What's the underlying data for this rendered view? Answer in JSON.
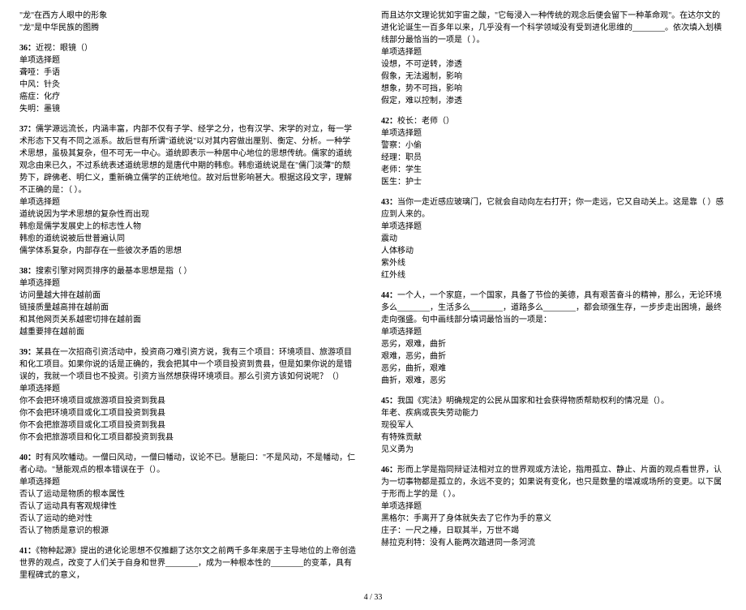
{
  "left": {
    "pre": [
      "\"龙\"在西方人眼中的形象",
      "\"龙\"是中华民族的图腾"
    ],
    "q36": {
      "num": "36：",
      "title": "近视：眼镜（）",
      "type": "单项选择题",
      "opts": [
        "聋哑：手语",
        "中风：针灸",
        "癌症：化疗",
        "失明：墨镜"
      ]
    },
    "q37": {
      "num": "37：",
      "body": "儒学源远流长，内涵丰富，内部不仅有子学、经学之分，也有汉学、宋学的对立，每一学术形态下又有不同之派系。故后世有所谓\"道统说\"以对其内容做出厘别、衡定、分析。一种学术思想，虽极其复杂，但不可无一中心。道统即表示一种居中心地位的思想传统。儒家的道统观念由来已久，不过系统表述道统思想的是唐代中期的韩愈。韩愈道统说是在\"儒门淡薄\"的颓势下，辟佛老、明仁义，重新确立儒学的正统地位。故对后世影响甚大。根据这段文字，理解不正确的是：（ ）。",
      "type": "单项选择题",
      "opts": [
        "道统说因为学术思想的复杂性而出现",
        "韩愈是儒学发展史上的标志性人物",
        "韩愈的道统说被后世普遍认同",
        "儒学体系复杂，内部存在一些彼次矛盾的思想"
      ]
    },
    "q38": {
      "num": "38：",
      "title": "搜索引擎对网页排序的最基本思想是指（   ）",
      "type": "单项选择题",
      "opts": [
        "访问量越大排在越前面",
        "链接质量越高排在越前面",
        "和其他网页关系越密切排在越前面",
        "越重要排在越前面"
      ]
    },
    "q39": {
      "num": "39：",
      "body": "某县在一次招商引资活动中，投资商刁难引资方说，我有三个项目：环境项目、旅游项目和化工项目。如果你说的话是正确的，我会把其中一个项目投资到贵县，但是如果你说的是错误的，我就一个项目也不投资。引资方当然想获得环境项目。那么引资方该如何说呢？（）",
      "type": "单项选择题",
      "opts": [
        "你不会把环境项目或旅游项目投资到我县",
        "你不会把环境项目或化工项目投资到我县",
        "你不会把旅游项目或化工项目投资到我县",
        "你不会把旅游项目和化工项目都投资到我县"
      ]
    },
    "q40": {
      "num": "40：",
      "body": "时有风吹幡动。一僧曰风动，一僧曰幡动，议论不已。慧能曰：\"不是风动，不是幡动，仁者心动。\"慧能观点的根本错误在于（）。",
      "type": "单项选择题",
      "opts": [
        "否认了运动是物质的根本属性",
        "否认了运动具有客观规律性",
        "否认了运动的绝对性",
        "否认了物质是意识的根源"
      ]
    },
    "q41": {
      "num": "41：",
      "body": "《物种起源》提出的进化论思想不仅推翻了达尔文之前两千多年来居于主导地位的上帝创造世界的观点，改变了人们关于自身和世界________，成为一种根本性的________的变革，具有里程碑式的意义，"
    }
  },
  "right": {
    "q41b": {
      "body": "而且达尔文理论犹如宇宙之酸，\"它每浸入一种传统的观念后便会留下一种革命观\"。在达尔文的进化论诞生一百多年以来，几乎没有一个科学领域没有受到进化思维的________。依次填入划横线部分最恰当的一项是（   ）。",
      "type": "单项选择题",
      "opts": [
        "设想，不可逆转，渗透",
        "假象，无法遏制，影响",
        "想象，势不可挡，影响",
        "假定，难以控制，渗透"
      ]
    },
    "q42": {
      "num": "42：",
      "title": "校长：老师（）",
      "type": "单项选择题",
      "opts": [
        "警察：小偷",
        "经理：职员",
        "老师：学生",
        "医生：护士"
      ]
    },
    "q43": {
      "num": "43：",
      "body": "当你一走近感应玻璃门，它就会自动向左右打开；你一走远，它又自动关上。这是靠（     ）感应到人来的。",
      "type": "单项选择题",
      "opts": [
        "震动",
        "人体移动",
        "紫外线",
        "红外线"
      ]
    },
    "q44": {
      "num": "44：",
      "body": "一个人，一个家庭，一个国家，具备了节俭的美德，具有艰苦奋斗的精神，那么，无论环境多么________，生活多么________，道路多么________，都会顽强生存，一步步走出困境，最终走向强盛。句中画线部分填词最恰当的一项是：",
      "type": "单项选择题",
      "opts": [
        "恶劣，艰难，曲折",
        "艰难，恶劣，曲折",
        "恶劣，曲折，艰难",
        "曲折，艰难，恶劣"
      ]
    },
    "q45": {
      "num": "45：",
      "body": "我国《宪法》明确规定的公民从国家和社会获得物质帮助权利的情况是（）。",
      "opts": [
        "年老、疾病或丧失劳动能力",
        "现役军人",
        "有特殊贡献",
        "见义勇为"
      ]
    },
    "q46": {
      "num": "46：",
      "body": "形而上学是指同辩证法相对立的世界观或方法论，指用孤立、静止、片面的观点看世界，认为一切事物都是孤立的，永远不变的；如果说有变化，也只是数量的增减或场所的变更。以下属于形而上学的是（   ）。",
      "type": "单项选择题",
      "opts": [
        "黑格尔：手离开了身体就失去了它作为手的意义",
        "庄子：一尺之棰，日取其半，万世不竭",
        "赫拉克利特：没有人能两次踏进同一条河流"
      ]
    }
  },
  "footer": "4 / 33"
}
